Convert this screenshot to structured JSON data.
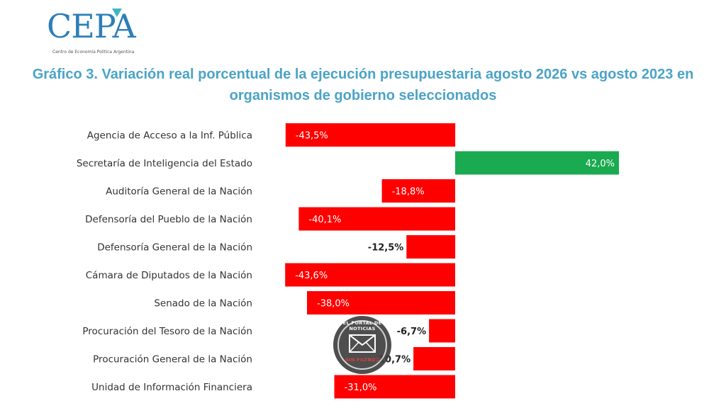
{
  "logo": {
    "name": "CEPA",
    "subtitle": "Centro de Economía Política Argentina"
  },
  "watermark": {
    "top_text": "EL PORTAL DE NOTICIAS",
    "bottom_text": "SIN FILTROS",
    "icon": "envelope-icon"
  },
  "colors": {
    "negative": "#ff0000",
    "positive": "#1aaa4f",
    "title": "#4ba3c7",
    "logo": "#2c7fb8"
  },
  "chart_data": {
    "type": "bar",
    "orientation": "horizontal",
    "title": "Gráfico 3. Variación real porcentual de la ejecución presupuestaria agosto 2026 vs agosto 2023 en organismos de gobierno seleccionados",
    "categories": [
      "Agencia de Acceso a la Inf. Pública",
      "Secretaría de Inteligencia del Estado",
      "Auditoría General de la Nación",
      "Defensoría del Pueblo de la Nación",
      "Defensoría General de la Nación",
      "Cámara de Diputados de la Nación",
      "Senado de la Nación",
      "Procuración del Tesoro de la Nación",
      "Procuración General de la Nación",
      "Unidad de Información Financiera"
    ],
    "values": [
      -43.5,
      42.0,
      -18.8,
      -40.1,
      -12.5,
      -43.6,
      -38.0,
      -6.7,
      -10.7,
      -31.0
    ],
    "value_labels": [
      "-43,5%",
      "42,0%",
      "-18,8%",
      "-40,1%",
      "-12,5%",
      "-43,6%",
      "-38,0%",
      "-6,7%",
      "-10,7%",
      "-31,0%"
    ],
    "xlim": [
      -44,
      43
    ],
    "grid": false,
    "legend": "none"
  }
}
